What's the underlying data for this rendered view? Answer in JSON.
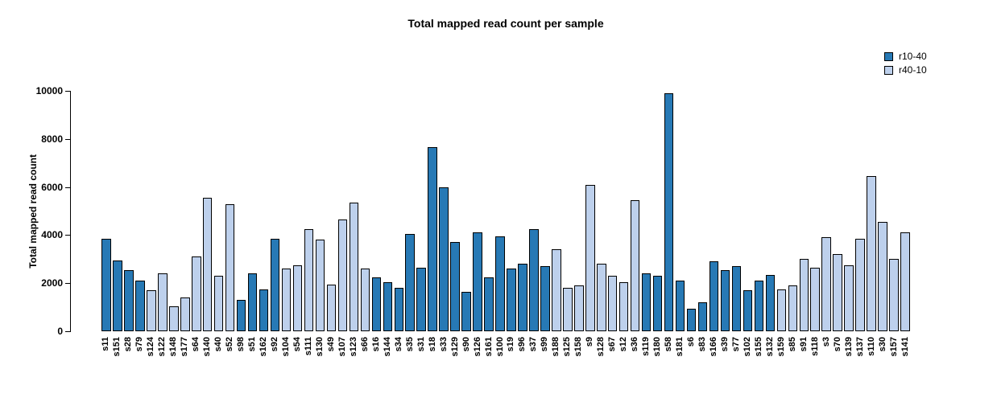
{
  "chart_data": {
    "type": "bar",
    "title": "Total mapped read count per sample",
    "xlabel": "",
    "ylabel": "Total mapped read count",
    "ylim": [
      0,
      10000
    ],
    "yticks": [
      0,
      2000,
      4000,
      6000,
      8000,
      10000
    ],
    "grid": false,
    "legend_position": "top-right",
    "series": [
      {
        "name": "r10-40",
        "color": "#2779b5"
      },
      {
        "name": "r40-10",
        "color": "#bdd0ec"
      }
    ],
    "bars": [
      {
        "sample": "s11",
        "value": 3850,
        "group": "r10-40"
      },
      {
        "sample": "s151",
        "value": 2950,
        "group": "r10-40"
      },
      {
        "sample": "s28",
        "value": 2550,
        "group": "r10-40"
      },
      {
        "sample": "s79",
        "value": 2100,
        "group": "r10-40"
      },
      {
        "sample": "s124",
        "value": 1700,
        "group": "r40-10"
      },
      {
        "sample": "s122",
        "value": 2400,
        "group": "r40-10"
      },
      {
        "sample": "s148",
        "value": 1050,
        "group": "r40-10"
      },
      {
        "sample": "s177",
        "value": 1400,
        "group": "r40-10"
      },
      {
        "sample": "s64",
        "value": 3100,
        "group": "r40-10"
      },
      {
        "sample": "s140",
        "value": 5550,
        "group": "r40-10"
      },
      {
        "sample": "s40",
        "value": 2300,
        "group": "r40-10"
      },
      {
        "sample": "s52",
        "value": 5300,
        "group": "r40-10"
      },
      {
        "sample": "s98",
        "value": 1300,
        "group": "r10-40"
      },
      {
        "sample": "s51",
        "value": 2400,
        "group": "r10-40"
      },
      {
        "sample": "s162",
        "value": 1750,
        "group": "r10-40"
      },
      {
        "sample": "s92",
        "value": 3850,
        "group": "r10-40"
      },
      {
        "sample": "s104",
        "value": 2600,
        "group": "r40-10"
      },
      {
        "sample": "s54",
        "value": 2750,
        "group": "r40-10"
      },
      {
        "sample": "s111",
        "value": 4250,
        "group": "r40-10"
      },
      {
        "sample": "s130",
        "value": 3800,
        "group": "r40-10"
      },
      {
        "sample": "s49",
        "value": 1950,
        "group": "r40-10"
      },
      {
        "sample": "s107",
        "value": 4650,
        "group": "r40-10"
      },
      {
        "sample": "s123",
        "value": 5350,
        "group": "r40-10"
      },
      {
        "sample": "s66",
        "value": 2600,
        "group": "r40-10"
      },
      {
        "sample": "s16",
        "value": 2250,
        "group": "r10-40"
      },
      {
        "sample": "s144",
        "value": 2050,
        "group": "r10-40"
      },
      {
        "sample": "s34",
        "value": 1800,
        "group": "r10-40"
      },
      {
        "sample": "s35",
        "value": 4050,
        "group": "r10-40"
      },
      {
        "sample": "s31",
        "value": 2650,
        "group": "r10-40"
      },
      {
        "sample": "s18",
        "value": 7650,
        "group": "r10-40"
      },
      {
        "sample": "s33",
        "value": 6000,
        "group": "r10-40"
      },
      {
        "sample": "s129",
        "value": 3700,
        "group": "r10-40"
      },
      {
        "sample": "s90",
        "value": 1650,
        "group": "r10-40"
      },
      {
        "sample": "s126",
        "value": 4100,
        "group": "r10-40"
      },
      {
        "sample": "s161",
        "value": 2250,
        "group": "r10-40"
      },
      {
        "sample": "s100",
        "value": 3950,
        "group": "r10-40"
      },
      {
        "sample": "s19",
        "value": 2600,
        "group": "r10-40"
      },
      {
        "sample": "s96",
        "value": 2800,
        "group": "r10-40"
      },
      {
        "sample": "s37",
        "value": 4250,
        "group": "r10-40"
      },
      {
        "sample": "s99",
        "value": 2700,
        "group": "r10-40"
      },
      {
        "sample": "s188",
        "value": 3400,
        "group": "r40-10"
      },
      {
        "sample": "s125",
        "value": 1800,
        "group": "r40-10"
      },
      {
        "sample": "s158",
        "value": 1900,
        "group": "r40-10"
      },
      {
        "sample": "s9",
        "value": 6100,
        "group": "r40-10"
      },
      {
        "sample": "s128",
        "value": 2800,
        "group": "r40-10"
      },
      {
        "sample": "s67",
        "value": 2300,
        "group": "r40-10"
      },
      {
        "sample": "s12",
        "value": 2050,
        "group": "r40-10"
      },
      {
        "sample": "s36",
        "value": 5450,
        "group": "r40-10"
      },
      {
        "sample": "s119",
        "value": 2400,
        "group": "r10-40"
      },
      {
        "sample": "s180",
        "value": 2300,
        "group": "r10-40"
      },
      {
        "sample": "s58",
        "value": 9900,
        "group": "r10-40"
      },
      {
        "sample": "s181",
        "value": 2100,
        "group": "r10-40"
      },
      {
        "sample": "s6",
        "value": 950,
        "group": "r10-40"
      },
      {
        "sample": "s83",
        "value": 1200,
        "group": "r10-40"
      },
      {
        "sample": "s166",
        "value": 2900,
        "group": "r10-40"
      },
      {
        "sample": "s39",
        "value": 2550,
        "group": "r10-40"
      },
      {
        "sample": "s77",
        "value": 2700,
        "group": "r10-40"
      },
      {
        "sample": "s102",
        "value": 1700,
        "group": "r10-40"
      },
      {
        "sample": "s155",
        "value": 2100,
        "group": "r10-40"
      },
      {
        "sample": "s132",
        "value": 2350,
        "group": "r10-40"
      },
      {
        "sample": "s159",
        "value": 1750,
        "group": "r40-10"
      },
      {
        "sample": "s85",
        "value": 1900,
        "group": "r40-10"
      },
      {
        "sample": "s91",
        "value": 3000,
        "group": "r40-10"
      },
      {
        "sample": "s118",
        "value": 2650,
        "group": "r40-10"
      },
      {
        "sample": "s3",
        "value": 3900,
        "group": "r40-10"
      },
      {
        "sample": "s70",
        "value": 3200,
        "group": "r40-10"
      },
      {
        "sample": "s139",
        "value": 2750,
        "group": "r40-10"
      },
      {
        "sample": "s137",
        "value": 3850,
        "group": "r40-10"
      },
      {
        "sample": "s110",
        "value": 6450,
        "group": "r40-10"
      },
      {
        "sample": "s30",
        "value": 4550,
        "group": "r40-10"
      },
      {
        "sample": "s157",
        "value": 3000,
        "group": "r40-10"
      },
      {
        "sample": "s141",
        "value": 4100,
        "group": "r40-10"
      }
    ]
  }
}
